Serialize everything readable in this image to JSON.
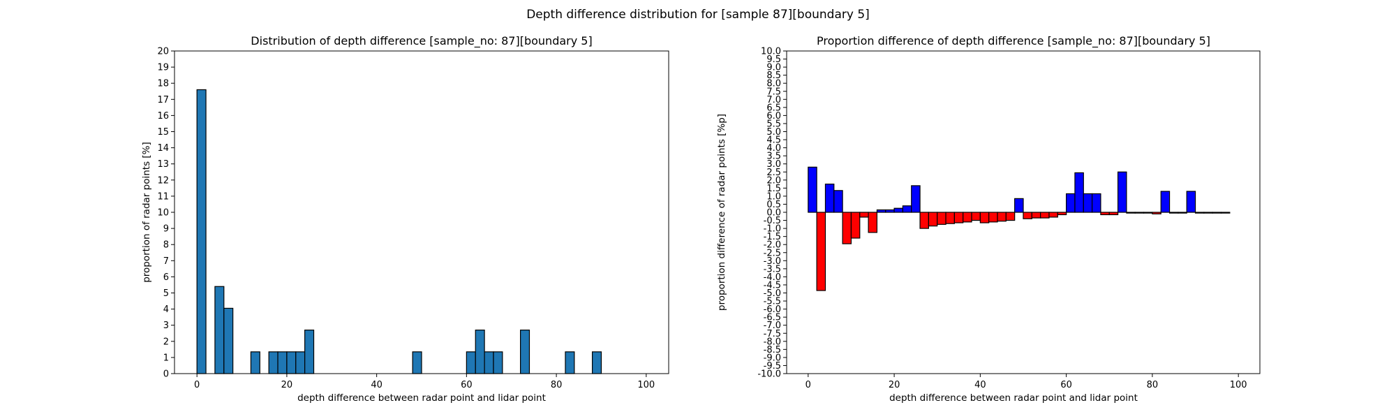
{
  "figure": {
    "suptitle": "Depth difference distribution for [sample 87][boundary 5]"
  },
  "chart_data": [
    {
      "type": "bar",
      "title": "Distribution of depth difference [sample_no: 87][boundary 5]",
      "xlabel": "depth difference between radar point and lidar point",
      "ylabel": "proportion of radar points [%]",
      "xlim": [
        -5,
        105
      ],
      "ylim": [
        0,
        20
      ],
      "xticks": [
        0,
        20,
        40,
        60,
        80,
        100
      ],
      "yticks": [
        0,
        1,
        2,
        3,
        4,
        5,
        6,
        7,
        8,
        9,
        10,
        11,
        12,
        13,
        14,
        15,
        16,
        17,
        18,
        19,
        20
      ],
      "bin_width": 2,
      "bar_color": "#1f77b4",
      "edge_color": "#000000",
      "x": [
        0,
        2,
        4,
        6,
        8,
        10,
        12,
        14,
        16,
        18,
        20,
        22,
        24,
        26,
        28,
        30,
        32,
        34,
        36,
        38,
        40,
        42,
        44,
        46,
        48,
        50,
        52,
        54,
        56,
        58,
        60,
        62,
        64,
        66,
        68,
        70,
        72,
        74,
        76,
        78,
        80,
        82,
        84,
        86,
        88,
        90,
        92,
        94,
        96,
        98
      ],
      "values": [
        17.6,
        0,
        5.4,
        4.05,
        0,
        0,
        1.35,
        0,
        1.35,
        1.35,
        1.35,
        1.35,
        2.7,
        0,
        0,
        0,
        0,
        0,
        0,
        0,
        0,
        0,
        0,
        0,
        1.35,
        0,
        0,
        0,
        0,
        0,
        1.35,
        2.7,
        1.35,
        1.35,
        0,
        0,
        2.7,
        0,
        0,
        0,
        0,
        1.35,
        0,
        0,
        1.35,
        0,
        0,
        0,
        0,
        0
      ]
    },
    {
      "type": "bar",
      "title": "Proportion difference of depth difference [sample_no: 87][boundary 5]",
      "xlabel": "depth difference between radar point and lidar point",
      "ylabel": "proportion difference of radar points [%p]",
      "xlim": [
        -5,
        105
      ],
      "ylim": [
        -10,
        10
      ],
      "xticks": [
        0,
        20,
        40,
        60,
        80,
        100
      ],
      "yticks": [
        "-10.0",
        "-9.5",
        "-9.0",
        "-8.5",
        "-8.0",
        "-7.5",
        "-7.0",
        "-6.5",
        "-6.0",
        "-5.5",
        "-5.0",
        "-4.5",
        "-4.0",
        "-3.5",
        "-3.0",
        "-2.5",
        "-2.0",
        "-1.5",
        "-1.0",
        "-0.5",
        "0.0",
        "0.5",
        "1.0",
        "1.5",
        "2.0",
        "2.5",
        "3.0",
        "3.5",
        "4.0",
        "4.5",
        "5.0",
        "5.5",
        "6.0",
        "6.5",
        "7.0",
        "7.5",
        "8.0",
        "8.5",
        "9.0",
        "9.5",
        "10.0"
      ],
      "bin_width": 2,
      "positive_color": "#0000ff",
      "negative_color": "#ff0000",
      "edge_color": "#000000",
      "x": [
        0,
        2,
        4,
        6,
        8,
        10,
        12,
        14,
        16,
        18,
        20,
        22,
        24,
        26,
        28,
        30,
        32,
        34,
        36,
        38,
        40,
        42,
        44,
        46,
        48,
        50,
        52,
        54,
        56,
        58,
        60,
        62,
        64,
        66,
        68,
        70,
        72,
        74,
        76,
        78,
        80,
        82,
        84,
        86,
        88,
        90,
        92,
        94,
        96,
        98
      ],
      "values": [
        2.8,
        -4.85,
        1.75,
        1.35,
        -1.95,
        -1.6,
        -0.3,
        -1.25,
        0.15,
        0.15,
        0.25,
        0.4,
        1.65,
        -1.0,
        -0.85,
        -0.75,
        -0.7,
        -0.65,
        -0.6,
        -0.5,
        -0.65,
        -0.6,
        -0.55,
        -0.5,
        0.85,
        -0.4,
        -0.35,
        -0.35,
        -0.3,
        -0.15,
        1.15,
        2.45,
        1.15,
        1.15,
        -0.15,
        -0.15,
        2.5,
        -0.05,
        -0.05,
        -0.05,
        -0.1,
        1.3,
        -0.05,
        -0.05,
        1.3,
        -0.05,
        -0.05,
        -0.05,
        -0.05,
        0.0
      ]
    }
  ]
}
